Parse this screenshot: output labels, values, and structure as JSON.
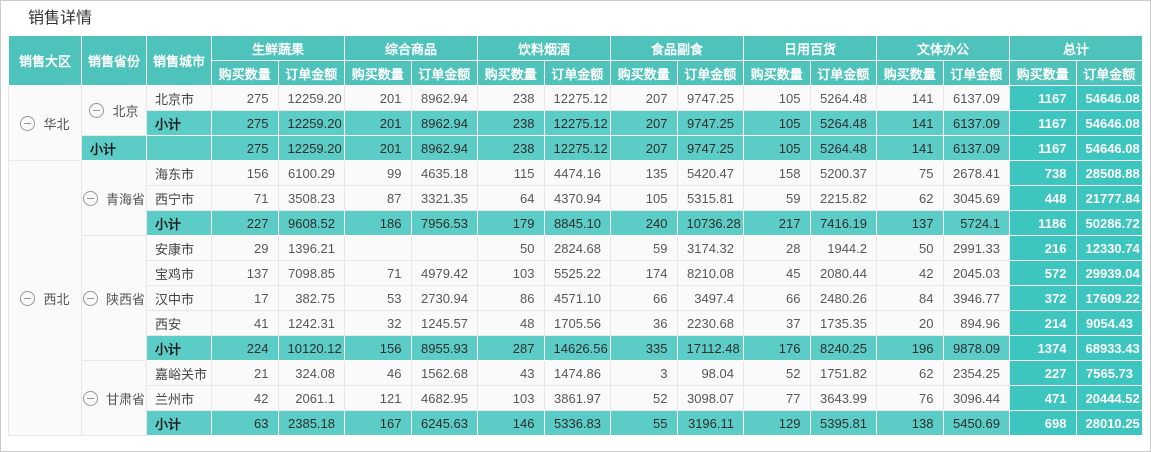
{
  "title": "销售详情",
  "colors": {
    "header_bg": "#4EC3BB",
    "subtotal_row_bg": "#5CCDC6",
    "total_column_bg": "#3DC5BF",
    "row_bg": "#FAFAFA",
    "border": "#E7E7E7"
  },
  "icons": {
    "collapse": "circled-minus"
  },
  "table": {
    "label_headers": [
      "销售大区",
      "销售省份",
      "销售城市"
    ],
    "group_headers": [
      "生鲜蔬果",
      "综合商品",
      "饮料烟酒",
      "食品副食",
      "日用百货",
      "文体办公",
      "总计"
    ],
    "sub_headers": [
      "购买数量",
      "订单金额"
    ],
    "subtotal_label": "小计",
    "regions": [
      {
        "name": "华北",
        "provinces": [
          {
            "name": "北京",
            "cities": [
              {
                "name": "北京市",
                "values": [
                  "275",
                  "12259.20",
                  "201",
                  "8962.94",
                  "238",
                  "12275.12",
                  "207",
                  "9747.25",
                  "105",
                  "5264.48",
                  "141",
                  "6137.09",
                  "1167",
                  "54646.08"
                ]
              }
            ],
            "subtotal": [
              "275",
              "12259.20",
              "201",
              "8962.94",
              "238",
              "12275.12",
              "207",
              "9747.25",
              "105",
              "5264.48",
              "141",
              "6137.09",
              "1167",
              "54646.08"
            ]
          }
        ],
        "subtotal": [
          "275",
          "12259.20",
          "201",
          "8962.94",
          "238",
          "12275.12",
          "207",
          "9747.25",
          "105",
          "5264.48",
          "141",
          "6137.09",
          "1167",
          "54646.08"
        ]
      },
      {
        "name": "西北",
        "provinces": [
          {
            "name": "青海省",
            "cities": [
              {
                "name": "海东市",
                "values": [
                  "156",
                  "6100.29",
                  "99",
                  "4635.18",
                  "115",
                  "4474.16",
                  "135",
                  "5420.47",
                  "158",
                  "5200.37",
                  "75",
                  "2678.41",
                  "738",
                  "28508.88"
                ]
              },
              {
                "name": "西宁市",
                "values": [
                  "71",
                  "3508.23",
                  "87",
                  "3321.35",
                  "64",
                  "4370.94",
                  "105",
                  "5315.81",
                  "59",
                  "2215.82",
                  "62",
                  "3045.69",
                  "448",
                  "21777.84"
                ]
              }
            ],
            "subtotal": [
              "227",
              "9608.52",
              "186",
              "7956.53",
              "179",
              "8845.10",
              "240",
              "10736.28",
              "217",
              "7416.19",
              "137",
              "5724.1",
              "1186",
              "50286.72"
            ]
          },
          {
            "name": "陕西省",
            "cities": [
              {
                "name": "安康市",
                "values": [
                  "29",
                  "1396.21",
                  "",
                  "",
                  "50",
                  "2824.68",
                  "59",
                  "3174.32",
                  "28",
                  "1944.2",
                  "50",
                  "2991.33",
                  "216",
                  "12330.74"
                ]
              },
              {
                "name": "宝鸡市",
                "values": [
                  "137",
                  "7098.85",
                  "71",
                  "4979.42",
                  "103",
                  "5525.22",
                  "174",
                  "8210.08",
                  "45",
                  "2080.44",
                  "42",
                  "2045.03",
                  "572",
                  "29939.04"
                ]
              },
              {
                "name": "汉中市",
                "values": [
                  "17",
                  "382.75",
                  "53",
                  "2730.94",
                  "86",
                  "4571.10",
                  "66",
                  "3497.4",
                  "66",
                  "2480.26",
                  "84",
                  "3946.77",
                  "372",
                  "17609.22"
                ]
              },
              {
                "name": "西安",
                "values": [
                  "41",
                  "1242.31",
                  "32",
                  "1245.57",
                  "48",
                  "1705.56",
                  "36",
                  "2230.68",
                  "37",
                  "1735.35",
                  "20",
                  "894.96",
                  "214",
                  "9054.43"
                ]
              }
            ],
            "subtotal": [
              "224",
              "10120.12",
              "156",
              "8955.93",
              "287",
              "14626.56",
              "335",
              "17112.48",
              "176",
              "8240.25",
              "196",
              "9878.09",
              "1374",
              "68933.43"
            ]
          },
          {
            "name": "甘肃省",
            "cities": [
              {
                "name": "嘉峪关市",
                "values": [
                  "21",
                  "324.08",
                  "46",
                  "1562.68",
                  "43",
                  "1474.86",
                  "3",
                  "98.04",
                  "52",
                  "1751.82",
                  "62",
                  "2354.25",
                  "227",
                  "7565.73"
                ]
              },
              {
                "name": "兰州市",
                "values": [
                  "42",
                  "2061.1",
                  "121",
                  "4682.95",
                  "103",
                  "3861.97",
                  "52",
                  "3098.07",
                  "77",
                  "3643.99",
                  "76",
                  "3096.44",
                  "471",
                  "20444.52"
                ]
              }
            ],
            "subtotal": [
              "63",
              "2385.18",
              "167",
              "6245.63",
              "146",
              "5336.83",
              "55",
              "3196.11",
              "129",
              "5395.81",
              "138",
              "5450.69",
              "698",
              "28010.25"
            ]
          }
        ]
      }
    ]
  }
}
